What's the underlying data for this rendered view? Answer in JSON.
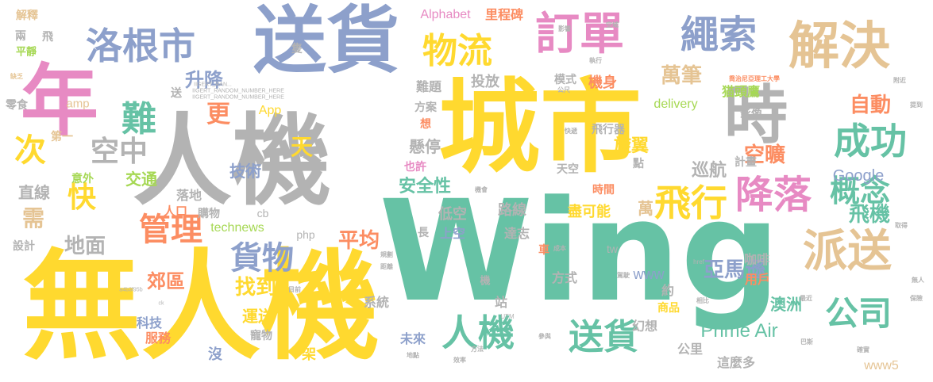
{
  "words": [
    {
      "text": "Wing",
      "color": "#66c2a5"
    },
    {
      "text": "無人機",
      "color": "#ffd92f"
    },
    {
      "text": "城市",
      "color": "#ffd92f"
    },
    {
      "text": "人機",
      "color": "#b3b3b3"
    },
    {
      "text": "送貨",
      "color": "#8da0cb"
    },
    {
      "text": "年",
      "color": "#e78ac3"
    },
    {
      "text": "時",
      "color": "#b3b3b3"
    },
    {
      "text": "解決",
      "color": "#e5c494"
    },
    {
      "text": "訂單",
      "color": "#e78ac3"
    },
    {
      "text": "繩索",
      "color": "#8da0cb"
    },
    {
      "text": "洛根市",
      "color": "#8da0cb"
    },
    {
      "text": "物流",
      "color": "#ffd92f"
    },
    {
      "text": "派送",
      "color": "#e5c494"
    },
    {
      "text": "降落",
      "color": "#e78ac3"
    },
    {
      "text": "飛行",
      "color": "#ffd92f"
    },
    {
      "text": "成功",
      "color": "#66c2a5"
    },
    {
      "text": "概念",
      "color": "#66c2a5"
    },
    {
      "text": "人機",
      "color": "#66c2a5"
    },
    {
      "text": "送貨",
      "color": "#66c2a5"
    },
    {
      "text": "公司",
      "color": "#66c2a5"
    },
    {
      "text": "難",
      "color": "#66c2a5"
    },
    {
      "text": "空中",
      "color": "#b3b3b3"
    },
    {
      "text": "次",
      "color": "#ffd92f"
    },
    {
      "text": "管理",
      "color": "#fc8d62"
    },
    {
      "text": "貨物",
      "color": "#8da0cb"
    },
    {
      "text": "快",
      "color": "#ffd92f"
    },
    {
      "text": "更",
      "color": "#fc8d62"
    },
    {
      "text": "天",
      "color": "#ffd92f"
    },
    {
      "text": "萬筆",
      "color": "#e5c494"
    },
    {
      "text": "自動",
      "color": "#fc8d62"
    },
    {
      "text": "空曠",
      "color": "#fc8d62"
    },
    {
      "text": "亞馬遜",
      "color": "#8da0cb"
    },
    {
      "text": "飛機",
      "color": "#66c2a5"
    },
    {
      "text": "升降",
      "color": "#8da0cb"
    },
    {
      "text": "平均",
      "color": "#fc8d62"
    },
    {
      "text": "找到",
      "color": "#ffd92f"
    },
    {
      "text": "地面",
      "color": "#b3b3b3"
    },
    {
      "text": "郊區",
      "color": "#fc8d62"
    },
    {
      "text": "運送",
      "color": "#ffd92f"
    },
    {
      "text": "需",
      "color": "#e5c494"
    },
    {
      "text": "Google",
      "color": "#8da0cb"
    },
    {
      "text": "Prime Air",
      "color": "#66c2a5"
    },
    {
      "text": "Alphabet",
      "color": "#e78ac3"
    },
    {
      "text": "里程碑",
      "color": "#fc8d62"
    },
    {
      "text": "猫頭鷹",
      "color": "#a6d854"
    },
    {
      "text": "投放",
      "color": "#b3b3b3"
    },
    {
      "text": "難題",
      "color": "#b3b3b3"
    },
    {
      "text": "機身",
      "color": "#fc8d62"
    },
    {
      "text": "模式",
      "color": "#b3b3b3"
    },
    {
      "text": "方案",
      "color": "#b3b3b3"
    },
    {
      "text": "delivery",
      "color": "#a6d854"
    },
    {
      "text": "App",
      "color": "#ffd92f"
    },
    {
      "text": "amp",
      "color": "#e5c494"
    },
    {
      "text": "飛行器",
      "color": "#b3b3b3"
    },
    {
      "text": "影像",
      "color": "#b3b3b3"
    },
    {
      "text": "懸停",
      "color": "#b3b3b3"
    },
    {
      "text": "旋翼",
      "color": "#ffd92f"
    },
    {
      "text": "巡航",
      "color": "#b3b3b3"
    },
    {
      "text": "計畫",
      "color": "#b3b3b3"
    },
    {
      "text": "技術",
      "color": "#8da0cb"
    },
    {
      "text": "安全性",
      "color": "#66c2a5"
    },
    {
      "text": "交通",
      "color": "#a6d854"
    },
    {
      "text": "直線",
      "color": "#b3b3b3"
    },
    {
      "text": "落地",
      "color": "#b3b3b3"
    },
    {
      "text": "購物",
      "color": "#b3b3b3"
    },
    {
      "text": "technews",
      "color": "#a6d854"
    },
    {
      "text": "路線",
      "color": "#b3b3b3"
    },
    {
      "text": "低空",
      "color": "#b3b3b3"
    },
    {
      "text": "上空",
      "color": "#8da0cb"
    },
    {
      "text": "達志",
      "color": "#b3b3b3"
    },
    {
      "text": "盡可能",
      "color": "#ffd92f"
    },
    {
      "text": "時間",
      "color": "#fc8d62"
    },
    {
      "text": "萬",
      "color": "#e5c494"
    },
    {
      "text": "www",
      "color": "#8da0cb"
    },
    {
      "text": "咖啡",
      "color": "#b3b3b3"
    },
    {
      "text": "用戶",
      "color": "#fc8d62"
    },
    {
      "text": "方式",
      "color": "#b3b3b3"
    },
    {
      "text": "約",
      "color": "#b3b3b3"
    },
    {
      "text": "商品",
      "color": "#ffd92f"
    },
    {
      "text": "幻想",
      "color": "#b3b3b3"
    },
    {
      "text": "澳洲",
      "color": "#66c2a5"
    },
    {
      "text": "www5",
      "color": "#e5c494"
    },
    {
      "text": "公里",
      "color": "#b3b3b3"
    },
    {
      "text": "這麼多",
      "color": "#b3b3b3"
    },
    {
      "text": "未來",
      "color": "#8da0cb"
    },
    {
      "text": "系統",
      "color": "#b3b3b3"
    },
    {
      "text": "科技",
      "color": "#8da0cb"
    },
    {
      "text": "服務",
      "color": "#fc8d62"
    },
    {
      "text": "寵物",
      "color": "#b3b3b3"
    },
    {
      "text": "沒",
      "color": "#8da0cb"
    },
    {
      "text": "架",
      "color": "#ffd92f"
    },
    {
      "text": "站",
      "color": "#b3b3b3"
    },
    {
      "text": "也許",
      "color": "#e78ac3"
    },
    {
      "text": "天空",
      "color": "#b3b3b3"
    },
    {
      "text": "第一",
      "color": "#e5c494"
    },
    {
      "text": "意外",
      "color": "#a6d854"
    },
    {
      "text": "零食",
      "color": "#b3b3b3"
    },
    {
      "text": "設計",
      "color": "#b3b3b3"
    },
    {
      "text": "解釋",
      "color": "#e5c494"
    },
    {
      "text": "兩",
      "color": "#b3b3b3"
    },
    {
      "text": "飛",
      "color": "#b3b3b3"
    },
    {
      "text": "平靜",
      "color": "#a6d854"
    },
    {
      "text": "人口",
      "color": "#fc8d62"
    },
    {
      "text": "cb",
      "color": "#b3b3b3"
    },
    {
      "text": "php",
      "color": "#b3b3b3"
    },
    {
      "text": "tw",
      "color": "#b3b3b3"
    },
    {
      "text": "長",
      "color": "#b3b3b3"
    },
    {
      "text": "車",
      "color": "#fc8d62"
    },
    {
      "text": "隻",
      "color": "#b3b3b3"
    },
    {
      "text": "送",
      "color": "#b3b3b3"
    },
    {
      "text": "想",
      "color": "#fc8d62"
    },
    {
      "text": "點",
      "color": "#b3b3b3"
    },
    {
      "text": "機",
      "color": "#b3b3b3"
    },
    {
      "text": "IIGERT_RAN...",
      "color": "#b3b3b3"
    },
    {
      "text": "IIGERT_RANDOM_NUMBER_HERE",
      "color": "#b3b3b3"
    },
    {
      "text": "IIGERT_RANDOM_NUMBER_HERE",
      "color": "#b3b3b3"
    },
    {
      "text": "喬治尼亞理工大學",
      "color": "#fc8d62"
    },
    {
      "text": "UTM",
      "color": "#b3b3b3"
    },
    {
      "text": "巴斯",
      "color": "#b3b3b3"
    },
    {
      "text": "a4b3f95b",
      "color": "#b3b3b3"
    },
    {
      "text": "href",
      "color": "#b3b3b3"
    },
    {
      "text": "ck",
      "color": "#b3b3b3"
    },
    {
      "text": "缺乏",
      "color": "#e5c494"
    },
    {
      "text": "提到",
      "color": "#b3b3b3"
    },
    {
      "text": "保險",
      "color": "#b3b3b3"
    },
    {
      "text": "無人",
      "color": "#b3b3b3"
    },
    {
      "text": "確實",
      "color": "#b3b3b3"
    },
    {
      "text": "地點",
      "color": "#b3b3b3"
    },
    {
      "text": "方法",
      "color": "#b3b3b3"
    },
    {
      "text": "效率",
      "color": "#b3b3b3"
    },
    {
      "text": "參與",
      "color": "#b3b3b3"
    },
    {
      "text": "空域",
      "color": "#b3b3b3"
    },
    {
      "text": "影響",
      "color": "#b3b3b3"
    },
    {
      "text": "執行",
      "color": "#b3b3b3"
    },
    {
      "text": "成本",
      "color": "#b3b3b3"
    },
    {
      "text": "駕駛",
      "color": "#b3b3b3"
    },
    {
      "text": "相比",
      "color": "#b3b3b3"
    },
    {
      "text": "規劃",
      "color": "#b3b3b3"
    },
    {
      "text": "距離",
      "color": "#b3b3b3"
    },
    {
      "text": "目前",
      "color": "#b3b3b3"
    },
    {
      "text": "取得",
      "color": "#b3b3b3"
    },
    {
      "text": "附近",
      "color": "#b3b3b3"
    },
    {
      "text": "快遞",
      "color": "#b3b3b3"
    },
    {
      "text": "公尺",
      "color": "#b3b3b3"
    },
    {
      "text": "最近",
      "color": "#b3b3b3"
    },
    {
      "text": "機會",
      "color": "#b3b3b3"
    }
  ]
}
